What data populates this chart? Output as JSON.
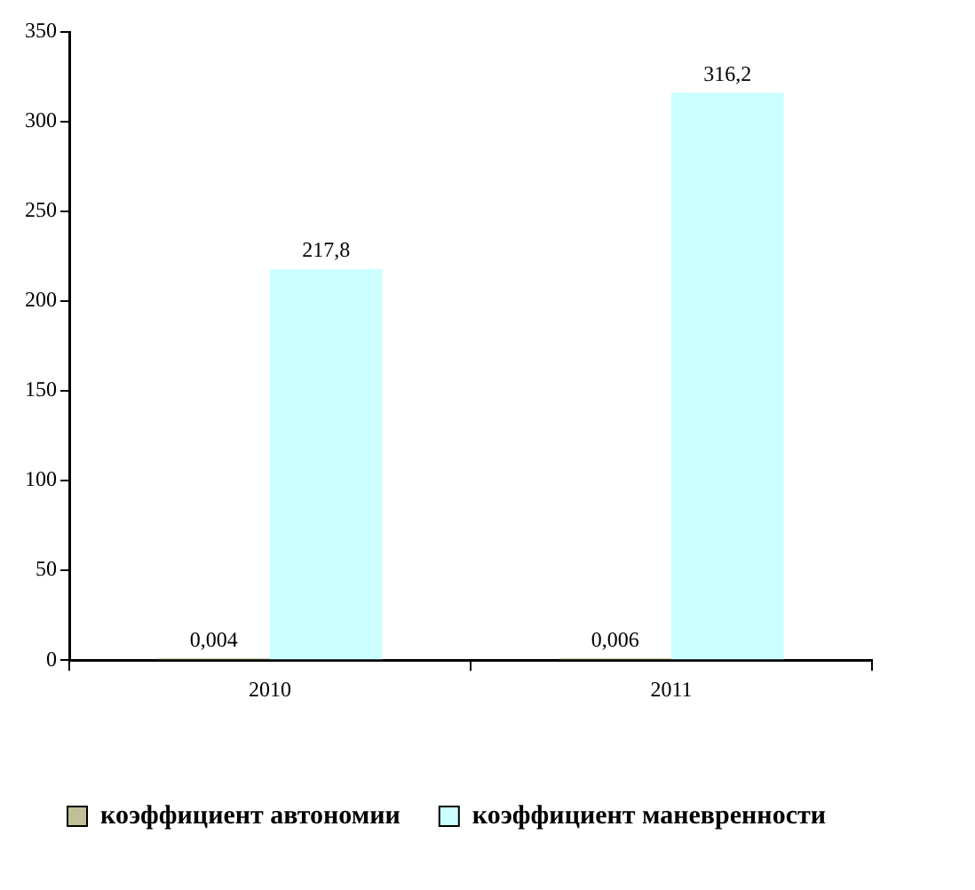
{
  "chart_data": {
    "type": "bar",
    "categories": [
      "2010",
      "2011"
    ],
    "series": [
      {
        "name": "коэффициент автономии",
        "color": "#c0c098",
        "values": [
          0.004,
          0.006
        ],
        "value_labels": [
          "0,004",
          "0,006"
        ]
      },
      {
        "name": "коэффициент маневренности",
        "color": "#ccffff",
        "values": [
          217.8,
          316.2
        ],
        "value_labels": [
          "217,8",
          "316,2"
        ]
      }
    ],
    "ylim": [
      0,
      350
    ],
    "yticks": [
      0,
      50,
      100,
      150,
      200,
      250,
      300,
      350
    ],
    "grid": false,
    "legend": "bottom"
  }
}
